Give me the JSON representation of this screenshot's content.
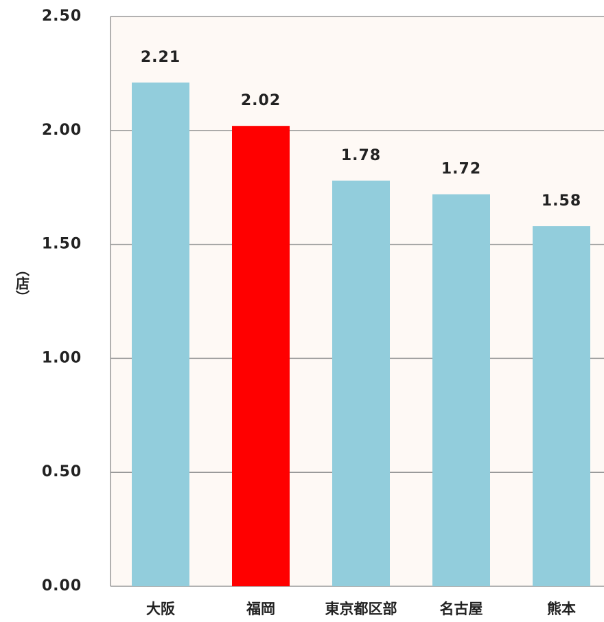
{
  "chart_data": {
    "type": "bar",
    "y_label": "（店）",
    "categories": [
      "大阪",
      "福岡",
      "東京都区部",
      "名古屋",
      "熊本"
    ],
    "values": [
      2.21,
      2.02,
      1.78,
      1.72,
      1.58
    ],
    "colors": [
      "#92cddc",
      "#ff0000",
      "#92cddc",
      "#92cddc",
      "#92cddc"
    ],
    "ylim": [
      0,
      2.5
    ],
    "yticks": [
      {
        "value": 0,
        "label": "0.00"
      },
      {
        "value": 0.5,
        "label": "0.50"
      },
      {
        "value": 1,
        "label": "1.00"
      },
      {
        "value": 1.5,
        "label": "1.50"
      },
      {
        "value": 2,
        "label": "2.00"
      },
      {
        "value": 2.5,
        "label": "2.50"
      }
    ],
    "grid": true
  }
}
